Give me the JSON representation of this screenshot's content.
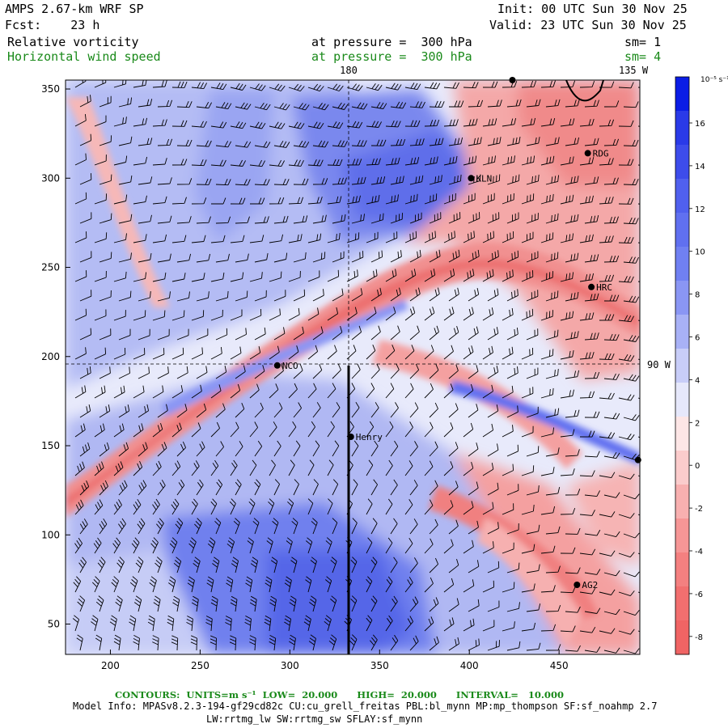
{
  "header": {
    "title": "AMPS 2.67-km WRF SP",
    "forecast": "Fcst:    23 h",
    "init": "Init: 00 UTC Sun 30 Nov 25",
    "valid": "Valid: 23 UTC Sun 30 Nov 25",
    "field1_name": "Relative vorticity",
    "field1_level": "at pressure =  300 hPa",
    "field1_smooth": "sm= 1",
    "field2_name": "Horizontal wind speed",
    "field2_level": "at pressure =  300 hPa",
    "field2_smooth": "sm= 4"
  },
  "map": {
    "x_axis_ticks": [
      "200",
      "250",
      "300",
      "350",
      "400",
      "450"
    ],
    "y_axis_ticks": [
      "50",
      "100",
      "150",
      "200",
      "250",
      "300",
      "350"
    ],
    "meridian_top_label": "180",
    "meridian_135_label": "135 W",
    "meridian_90_label": "90 W",
    "stations": [
      {
        "label": "NCO",
        "x": 293,
        "y": 195
      },
      {
        "label": "Henry",
        "x": 334,
        "y": 155
      },
      {
        "label": "KLN",
        "x": 401,
        "y": 300
      },
      {
        "label": "RDG",
        "x": 466,
        "y": 314
      },
      {
        "label": "HRC",
        "x": 468,
        "y": 239
      },
      {
        "label": "AG2",
        "x": 460,
        "y": 72
      },
      {
        "label": "",
        "x": 494,
        "y": 142
      },
      {
        "label": "",
        "x": 424,
        "y": 355
      }
    ],
    "colors": {
      "positive": "#3b4fe0",
      "negative": "#f0787a",
      "barb": "#000000"
    }
  },
  "colorbar": {
    "unit_label": "10⁻⁵ s⁻¹",
    "labels": [
      "16",
      "14",
      "12",
      "10",
      "8",
      "6",
      "4",
      "2",
      "0",
      "-2",
      "-4",
      "-6",
      "-8"
    ],
    "colors": [
      "#0b1de6",
      "#2a3ae8",
      "#3d4ceb",
      "#5060ee",
      "#6070f0",
      "#7080f2",
      "#8a96f4",
      "#a8b1f6",
      "#c8cdf8",
      "#e6e8fb",
      "#fde6e6",
      "#fbcccc",
      "#f8b0b0",
      "#f69696",
      "#f48080",
      "#f26f6f",
      "#f06464"
    ]
  },
  "footer": {
    "contours": "CONTOURS:  UNITS=m s⁻¹  LOW=  20.000      HIGH=  20.000      INTERVAL=   10.000",
    "model_info": "Model Info: MPASv8.2.3-194-gf29cd82c CU:cu_grell_freitas PBL:bl_mynn MP:mp_thompson SF:sf_noahmp 2.7",
    "model_info2": "LW:rrtmg_lw SW:rrtmg_sw SFLAY:sf_mynn"
  }
}
